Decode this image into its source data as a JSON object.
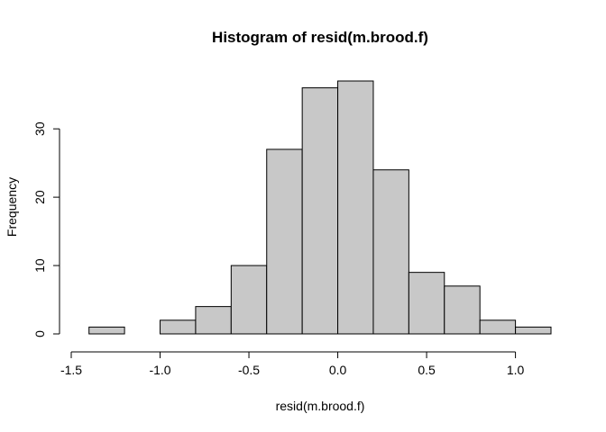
{
  "chart_data": {
    "type": "bar",
    "title": "Histogram of resid(m.brood.f)",
    "xlabel": "resid(m.brood.f)",
    "ylabel": "Frequency",
    "bins": [
      {
        "start": -1.4,
        "end": -1.2,
        "count": 1
      },
      {
        "start": -1.2,
        "end": -1.0,
        "count": 0
      },
      {
        "start": -1.0,
        "end": -0.8,
        "count": 2
      },
      {
        "start": -0.8,
        "end": -0.6,
        "count": 4
      },
      {
        "start": -0.6,
        "end": -0.4,
        "count": 10
      },
      {
        "start": -0.4,
        "end": -0.2,
        "count": 27
      },
      {
        "start": -0.2,
        "end": 0.0,
        "count": 36
      },
      {
        "start": 0.0,
        "end": 0.2,
        "count": 37
      },
      {
        "start": 0.2,
        "end": 0.4,
        "count": 24
      },
      {
        "start": 0.4,
        "end": 0.6,
        "count": 9
      },
      {
        "start": 0.6,
        "end": 0.8,
        "count": 7
      },
      {
        "start": 0.8,
        "end": 1.0,
        "count": 2
      },
      {
        "start": 1.0,
        "end": 1.2,
        "count": 1
      }
    ],
    "xlim": [
      -1.5,
      1.2
    ],
    "ylim": [
      0,
      37
    ],
    "x_ticks": [
      -1.5,
      -1.0,
      -0.5,
      0.0,
      0.5,
      1.0
    ],
    "x_tick_labels": [
      "-1.5",
      "-1.0",
      "-0.5",
      "0.0",
      "0.5",
      "1.0"
    ],
    "y_ticks": [
      0,
      10,
      20,
      30
    ],
    "y_tick_labels": [
      "0",
      "10",
      "20",
      "30"
    ],
    "bar_fill": "#c8c8c8",
    "bar_stroke": "#000000",
    "grid": false,
    "legend": "none"
  }
}
